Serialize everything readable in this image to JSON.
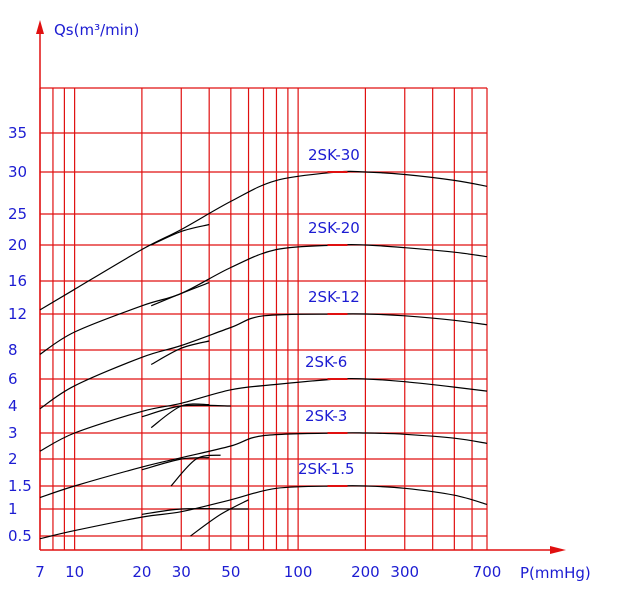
{
  "chart_data": {
    "type": "line",
    "title": "",
    "xlabel": "P(mmHg)",
    "ylabel": "Qs(m³/min)",
    "x_scale": "log",
    "y_scale": "nonlinear (labelled tick positions)",
    "grid": true,
    "colors": {
      "grid": "#e01010",
      "axes": "#e01010",
      "labels": "#1c1cd2",
      "curves": "#000000"
    },
    "x_ticks": [
      7,
      10,
      20,
      30,
      50,
      100,
      200,
      300,
      700
    ],
    "x_tick_labels": [
      "7",
      "10",
      "20",
      "30",
      "50",
      "100",
      "200",
      "300",
      "700"
    ],
    "y_ticks": [
      0.5,
      1,
      1.5,
      2,
      3,
      4,
      6,
      8,
      12,
      16,
      20,
      25,
      30,
      35
    ],
    "y_tick_labels": [
      "0.5",
      "1",
      "1.5",
      "2",
      "3",
      "4",
      "6",
      "8",
      "12",
      "16",
      "20",
      "25",
      "30",
      "35"
    ],
    "series": [
      {
        "name": "2SK-30",
        "points": [
          [
            7,
            12.5
          ],
          [
            10,
            15
          ],
          [
            20,
            19.5
          ],
          [
            30,
            22.5
          ],
          [
            50,
            26.5
          ],
          [
            80,
            29
          ],
          [
            150,
            30
          ],
          [
            200,
            30
          ],
          [
            300,
            29.7
          ],
          [
            500,
            29
          ],
          [
            700,
            28.3
          ]
        ]
      },
      {
        "name": "2SK-20",
        "points": [
          [
            7,
            7.7
          ],
          [
            10,
            10
          ],
          [
            20,
            13
          ],
          [
            30,
            14.5
          ],
          [
            50,
            17.5
          ],
          [
            80,
            19.5
          ],
          [
            150,
            20
          ],
          [
            200,
            20
          ],
          [
            300,
            19.7
          ],
          [
            500,
            19.2
          ],
          [
            700,
            18.7
          ]
        ]
      },
      {
        "name": "2SK-12",
        "points": [
          [
            7,
            3.9
          ],
          [
            10,
            5.5
          ],
          [
            20,
            7.5
          ],
          [
            30,
            8.5
          ],
          [
            50,
            10.5
          ],
          [
            70,
            11.8
          ],
          [
            150,
            12
          ],
          [
            200,
            12
          ],
          [
            300,
            11.8
          ],
          [
            500,
            11.3
          ],
          [
            700,
            10.8
          ]
        ]
      },
      {
        "name": "2SK-6",
        "points": [
          [
            7,
            2.3
          ],
          [
            10,
            3
          ],
          [
            20,
            3.8
          ],
          [
            30,
            4.2
          ],
          [
            50,
            5.2
          ],
          [
            80,
            5.6
          ],
          [
            150,
            6
          ],
          [
            200,
            6
          ],
          [
            300,
            5.8
          ],
          [
            500,
            5.4
          ],
          [
            700,
            5.1
          ]
        ]
      },
      {
        "name": "2SK-3",
        "points": [
          [
            7,
            1.25
          ],
          [
            10,
            1.5
          ],
          [
            20,
            1.85
          ],
          [
            30,
            2.05
          ],
          [
            50,
            2.5
          ],
          [
            70,
            2.9
          ],
          [
            150,
            3
          ],
          [
            200,
            3
          ],
          [
            300,
            2.95
          ],
          [
            500,
            2.8
          ],
          [
            700,
            2.6
          ]
        ]
      },
      {
        "name": "2SK-1.5",
        "points": [
          [
            7,
            0.45
          ],
          [
            10,
            0.6
          ],
          [
            20,
            0.85
          ],
          [
            30,
            0.95
          ],
          [
            50,
            1.2
          ],
          [
            80,
            1.45
          ],
          [
            150,
            1.5
          ],
          [
            200,
            1.5
          ],
          [
            300,
            1.45
          ],
          [
            500,
            1.3
          ],
          [
            700,
            1.1
          ]
        ]
      }
    ],
    "overlap_segments": [
      {
        "points": [
          [
            22,
            20
          ],
          [
            30,
            22.2
          ],
          [
            40,
            23.3
          ]
        ]
      },
      {
        "points": [
          [
            22,
            13
          ],
          [
            30,
            14.5
          ],
          [
            40,
            15.8
          ]
        ]
      },
      {
        "points": [
          [
            22,
            7
          ],
          [
            30,
            8.2
          ],
          [
            40,
            9
          ]
        ]
      },
      {
        "points": [
          [
            22,
            3.2
          ],
          [
            30,
            4
          ],
          [
            40,
            4.1
          ]
        ]
      },
      {
        "points": [
          [
            27,
            1.5
          ],
          [
            35,
            2
          ],
          [
            45,
            2.15
          ]
        ]
      },
      {
        "points": [
          [
            33,
            0.5
          ],
          [
            45,
            0.9
          ],
          [
            60,
            1.2
          ]
        ]
      }
    ],
    "flat_tails": [
      {
        "points": [
          [
            20,
            0.9
          ],
          [
            30,
            1
          ],
          [
            50,
            1
          ],
          [
            60,
            1
          ]
        ]
      },
      {
        "points": [
          [
            20,
            1.8
          ],
          [
            30,
            2
          ],
          [
            40,
            2.05
          ]
        ]
      },
      {
        "points": [
          [
            20,
            3.6
          ],
          [
            30,
            4
          ],
          [
            50,
            4
          ]
        ]
      }
    ]
  }
}
